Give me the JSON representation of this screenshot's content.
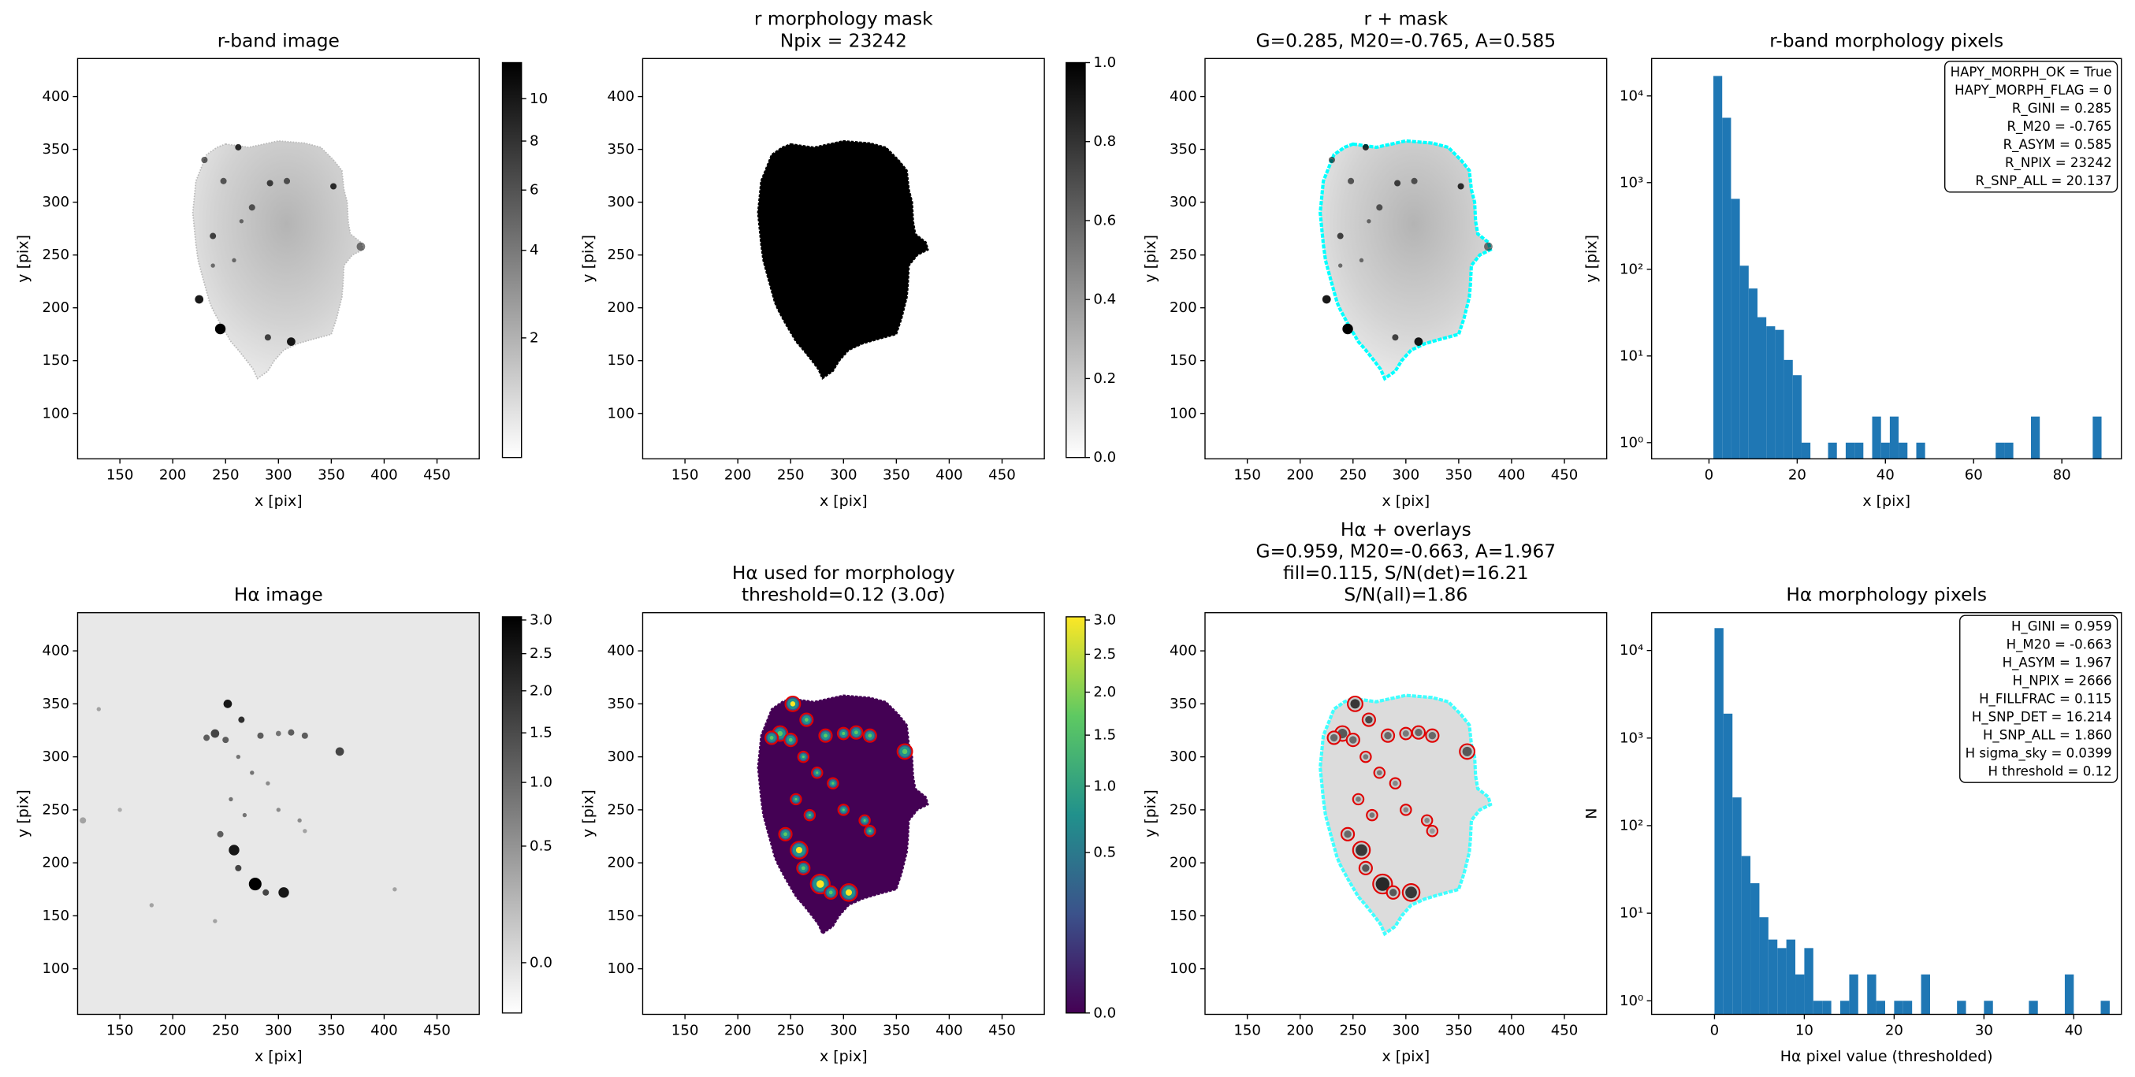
{
  "chart_data": [
    {
      "type": "image",
      "style": "r-band",
      "title": "r-band image",
      "xlabel": "x [pix]",
      "ylabel": "y [pix]",
      "xlim": [
        110,
        490
      ],
      "ylim": [
        57,
        436
      ],
      "xticks": [
        150,
        200,
        250,
        300,
        350,
        400,
        450
      ],
      "yticks": [
        100,
        150,
        200,
        250,
        300,
        350,
        400
      ],
      "colorbar": {
        "cmap": "gray_r",
        "scale": "sqrt",
        "lim": [
          1,
          11.9
        ],
        "ticks": [
          2,
          4,
          6,
          8,
          10
        ]
      }
    },
    {
      "type": "image",
      "style": "mask",
      "title": [
        "r morphology mask",
        "Npix = 23242"
      ],
      "xlabel": "x [pix]",
      "ylabel": "y [pix]",
      "xlim": [
        110,
        490
      ],
      "ylim": [
        57,
        436
      ],
      "xticks": [
        150,
        200,
        250,
        300,
        350,
        400,
        450
      ],
      "yticks": [
        100,
        150,
        200,
        250,
        300,
        350,
        400
      ],
      "colorbar": {
        "cmap": "gray_r",
        "scale": "linear",
        "lim": [
          0,
          1
        ],
        "ticks": [
          {
            "value": 0,
            "label": "0.0"
          },
          0.2,
          0.4,
          0.6,
          0.8,
          {
            "value": 1,
            "label": "1.0"
          }
        ]
      }
    },
    {
      "type": "image",
      "style": "r-overlay",
      "title": [
        "r + mask",
        "G=0.285, M20=-0.765, A=0.585"
      ],
      "xlabel": "x [pix]",
      "ylabel": "y [pix]",
      "xlim": [
        110,
        490
      ],
      "ylim": [
        57,
        436
      ],
      "xticks": [
        150,
        200,
        250,
        300,
        350,
        400,
        450
      ],
      "yticks": [
        100,
        150,
        200,
        250,
        300,
        350,
        400
      ]
    },
    {
      "type": "histogram",
      "title": "r-band morphology pixels",
      "xlabel": "x [pix]",
      "ylabel": "y [pix]",
      "color": "#1f77b4",
      "bins": [
        1,
        3,
        5,
        7,
        9,
        11,
        13,
        15,
        17,
        19,
        21,
        23,
        25,
        27,
        29,
        31,
        33,
        35,
        37,
        39,
        41,
        43,
        45,
        47,
        49,
        51,
        53,
        55,
        57,
        59,
        61,
        63,
        65,
        67,
        69,
        71,
        73,
        75,
        77,
        79,
        81,
        83,
        85,
        87,
        89,
        91
      ],
      "counts": [
        17000,
        5600,
        650,
        110,
        60,
        28,
        22,
        20,
        9,
        6,
        1,
        0,
        0,
        1,
        0,
        1,
        1,
        0,
        2,
        1,
        2,
        1,
        0,
        1,
        0,
        0,
        0,
        0,
        0,
        0,
        0,
        0,
        1,
        1,
        0,
        0,
        2,
        0,
        0,
        0,
        0,
        0,
        0,
        2,
        0
      ],
      "xlim": [
        -13,
        93.5
      ],
      "ylim": [
        0.65,
        27000
      ],
      "log_y": true,
      "xticks": [
        0,
        20,
        40,
        60,
        80
      ],
      "yticks": [
        {
          "value": 1,
          "label": "10⁰"
        },
        {
          "value": 10,
          "label": "10¹"
        },
        {
          "value": 100,
          "label": "10²"
        },
        {
          "value": 1000,
          "label": "10³"
        },
        {
          "value": 10000,
          "label": "10⁴"
        }
      ],
      "annotation": [
        "HAPY_MORPH_OK = True",
        "HAPY_MORPH_FLAG = 0",
        "R_GINI = 0.285",
        "R_M20 = -0.765",
        "R_ASYM = 0.585",
        "R_NPIX = 23242",
        "R_SNP_ALL = 20.137"
      ]
    },
    {
      "type": "image",
      "style": "ha",
      "title": "Hα image",
      "xlabel": "x [pix]",
      "ylabel": "y [pix]",
      "xlim": [
        110,
        490
      ],
      "ylim": [
        57,
        436
      ],
      "xticks": [
        150,
        200,
        250,
        300,
        350,
        400,
        450
      ],
      "yticks": [
        100,
        150,
        200,
        250,
        300,
        350,
        400
      ],
      "colorbar": {
        "cmap": "gray_r",
        "scale": "sqrt",
        "lim": [
          -0.05,
          3.05
        ],
        "ticks": [
          {
            "value": 0,
            "label": "0.0"
          },
          0.5,
          {
            "value": 1,
            "label": "1.0"
          },
          1.5,
          {
            "value": 2,
            "label": "2.0"
          },
          2.5,
          {
            "value": 3,
            "label": "3.0"
          }
        ]
      }
    },
    {
      "type": "image",
      "style": "ha-morph",
      "title": [
        "Hα used for morphology",
        "threshold=0.12 (3.0σ)"
      ],
      "xlabel": "x [pix]",
      "ylabel": "y [pix]",
      "xlim": [
        110,
        490
      ],
      "ylim": [
        57,
        436
      ],
      "xticks": [
        150,
        200,
        250,
        300,
        350,
        400,
        450
      ],
      "yticks": [
        100,
        150,
        200,
        250,
        300,
        350,
        400
      ],
      "colorbar": {
        "cmap": "viridis",
        "scale": "sqrt",
        "lim": [
          0,
          3.05
        ],
        "ticks": [
          {
            "value": 0,
            "label": "0.0"
          },
          0.5,
          {
            "value": 1,
            "label": "1.0"
          },
          1.5,
          {
            "value": 2,
            "label": "2.0"
          },
          2.5,
          {
            "value": 3,
            "label": "3.0"
          }
        ]
      }
    },
    {
      "type": "image",
      "style": "ha-overlay",
      "title": [
        "Hα + overlays",
        "G=0.959, M20=-0.663, A=1.967",
        "fill=0.115, S/N(det)=16.21",
        "S/N(all)=1.86"
      ],
      "xlabel": "x [pix]",
      "ylabel": "y [pix]",
      "xlim": [
        110,
        490
      ],
      "ylim": [
        57,
        436
      ],
      "xticks": [
        150,
        200,
        250,
        300,
        350,
        400,
        450
      ],
      "yticks": [
        100,
        150,
        200,
        250,
        300,
        350,
        400
      ]
    },
    {
      "type": "histogram",
      "title": "Hα morphology pixels",
      "xlabel": "Hα pixel value (thresholded)",
      "ylabel": "N",
      "color": "#1f77b4",
      "bins": [
        0,
        1,
        2,
        3,
        4,
        5,
        6,
        7,
        8,
        9,
        10,
        11,
        12,
        13,
        14,
        15,
        16,
        17,
        18,
        19,
        20,
        21,
        22,
        23,
        24,
        25,
        26,
        27,
        28,
        29,
        30,
        31,
        32,
        33,
        34,
        35,
        36,
        37,
        38,
        39,
        40,
        41,
        42,
        43,
        44
      ],
      "counts": [
        18000,
        1900,
        210,
        45,
        22,
        9,
        5,
        4,
        5,
        2,
        4,
        1,
        1,
        0,
        1,
        2,
        0,
        2,
        1,
        0,
        1,
        1,
        0,
        2,
        0,
        0,
        0,
        1,
        0,
        0,
        1,
        0,
        0,
        0,
        0,
        1,
        0,
        0,
        0,
        2,
        0,
        0,
        0,
        1
      ],
      "xlim": [
        -7,
        45.3
      ],
      "ylim": [
        0.7,
        27000
      ],
      "log_y": true,
      "xticks": [
        0,
        10,
        20,
        30,
        40
      ],
      "yticks": [
        {
          "value": 1,
          "label": "10⁰"
        },
        {
          "value": 10,
          "label": "10¹"
        },
        {
          "value": 100,
          "label": "10²"
        },
        {
          "value": 1000,
          "label": "10³"
        },
        {
          "value": 10000,
          "label": "10⁴"
        }
      ],
      "annotation": [
        "H_GINI = 0.959",
        "H_M20 = -0.663",
        "H_ASYM = 1.967",
        "H_NPIX = 2666",
        "H_FILLFRAC = 0.115",
        "H_SNP_DET = 16.214",
        "H_SNP_ALL = 1.860",
        "H sigma_sky = 0.0399",
        "H threshold = 0.12"
      ]
    }
  ]
}
